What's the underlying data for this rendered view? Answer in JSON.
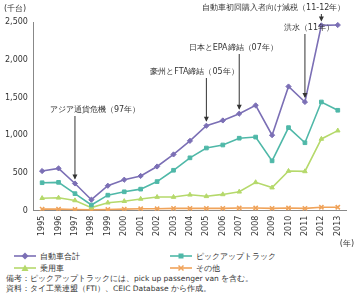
{
  "chart_data": {
    "type": "line",
    "x_label": "(年)",
    "y_label": "(千台)",
    "categories": [
      "1995",
      "1996",
      "1997",
      "1998",
      "1999",
      "2000",
      "2001",
      "2002",
      "2003",
      "2004",
      "2005",
      "2006",
      "2007",
      "2008",
      "2009",
      "2010",
      "2011",
      "2012",
      "2013"
    ],
    "series": [
      {
        "name": "自動車合計",
        "color": "#7b6fb5",
        "marker": "diamond",
        "values": [
          525,
          560,
          360,
          145,
          330,
          410,
          460,
          585,
          745,
          925,
          1125,
          1195,
          1285,
          1395,
          1000,
          1645,
          1440,
          2455,
          2460
        ]
      },
      {
        "name": "ピックアップトラック",
        "color": "#4fb8a8",
        "marker": "square",
        "values": [
          370,
          375,
          225,
          75,
          205,
          250,
          285,
          385,
          535,
          700,
          830,
          870,
          960,
          975,
          660,
          1100,
          900,
          1440,
          1330
        ]
      },
      {
        "name": "乗用車",
        "color": "#b5d96b",
        "marker": "triangle",
        "values": [
          165,
          170,
          135,
          40,
          105,
          125,
          155,
          180,
          180,
          210,
          190,
          215,
          250,
          375,
          305,
          525,
          520,
          950,
          1060
        ]
      },
      {
        "name": "その他",
        "color": "#f0a35a",
        "marker": "cross",
        "values": [
          20,
          20,
          15,
          10,
          15,
          20,
          25,
          25,
          30,
          30,
          30,
          30,
          35,
          35,
          30,
          35,
          30,
          45,
          45
        ]
      }
    ],
    "ylim": [
      0,
      2500
    ],
    "yticks": [
      0,
      500,
      {
        "value": 1000,
        "label": "1,000"
      },
      {
        "value": 1500,
        "label": "1,500"
      },
      {
        "value": 2000,
        "label": "2,000"
      },
      {
        "value": 2500,
        "label": "2,500"
      }
    ],
    "grid": false,
    "annotations": [
      {
        "text": "アジア通貨危機（97年）",
        "x": "1997"
      },
      {
        "text": "豪州とFTA締結（05年）",
        "x": "2005"
      },
      {
        "text": "日本とEPA締結（07年）",
        "x": "2007"
      },
      {
        "text": "洪水（11年）",
        "x": "2011"
      },
      {
        "text": "自動車初回購入者向け減税（11-12年）",
        "x": "2012"
      }
    ],
    "notes": [
      "備考：ピックアップトラックには、pick up passenger van を含む。",
      "資料：タイ工業連盟（FTI）、CEIC Database から作成。"
    ]
  }
}
